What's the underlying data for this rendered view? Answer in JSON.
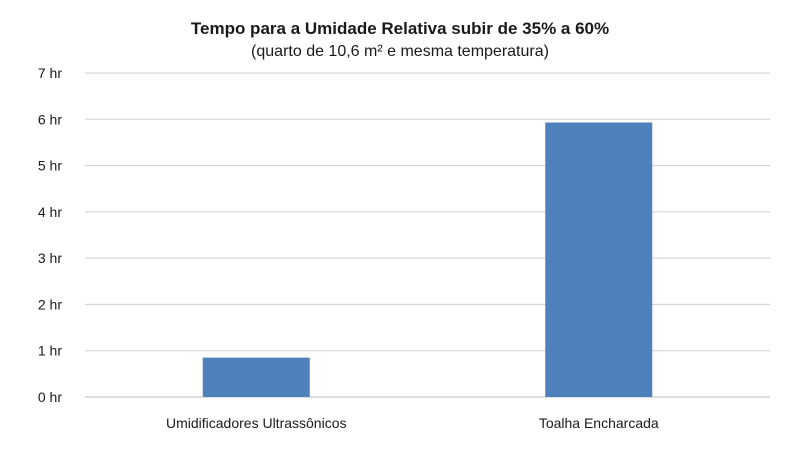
{
  "chart_data": {
    "type": "bar",
    "title": "Tempo para a Umidade Relativa subir de 35% a 60%",
    "subtitle": "(quarto de 10,6 m² e mesma temperatura)",
    "categories": [
      "Umidificadores Ultrassônicos",
      "Toalha Encharcada"
    ],
    "values": [
      0.85,
      5.93
    ],
    "ylim": [
      0,
      7
    ],
    "yticks": [
      {
        "value": 0,
        "label": "0 hr"
      },
      {
        "value": 1,
        "label": "1 hr"
      },
      {
        "value": 2,
        "label": "2 hr"
      },
      {
        "value": 3,
        "label": "3 hr"
      },
      {
        "value": 4,
        "label": "4 hr"
      },
      {
        "value": 5,
        "label": "5 hr"
      },
      {
        "value": 6,
        "label": "6 hr"
      },
      {
        "value": 7,
        "label": "7 hr"
      }
    ],
    "xlabel": "",
    "ylabel": "",
    "grid": true,
    "legend": "none",
    "bar_color": "#4f81bd"
  }
}
